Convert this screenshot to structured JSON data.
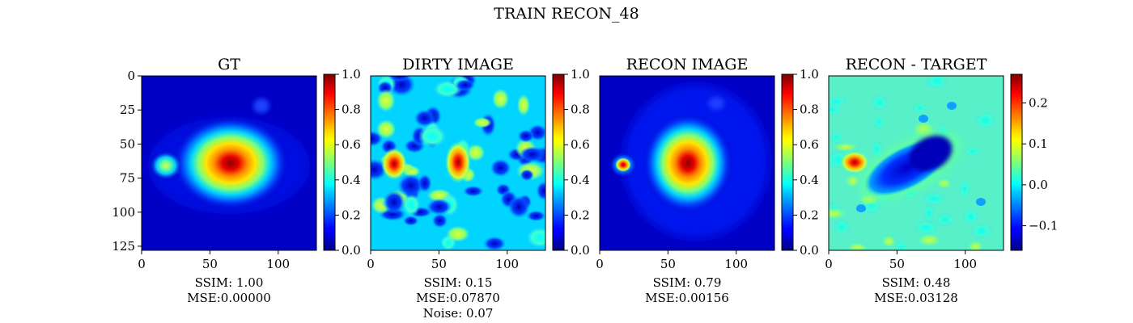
{
  "figure": {
    "title": "TRAIN RECON_48"
  },
  "colors": {
    "colormap": "jet",
    "background": "#ffffff"
  },
  "chart_data": [
    {
      "type": "heatmap",
      "title": "GT",
      "x_ticks": [
        0,
        50,
        100
      ],
      "y_ticks": [
        0,
        25,
        50,
        75,
        100,
        125
      ],
      "xlim": [
        0,
        128
      ],
      "ylim": [
        128,
        0
      ],
      "colorbar": {
        "min": 0.0,
        "max": 1.0,
        "ticks": [
          "0.0",
          "0.2",
          "0.4",
          "0.6",
          "0.8",
          "1.0"
        ]
      },
      "captions": [
        "SSIM: 1.00",
        "MSE:0.00000"
      ]
    },
    {
      "type": "heatmap",
      "title": "DIRTY IMAGE",
      "x_ticks": [
        0,
        50,
        100
      ],
      "xlim": [
        0,
        128
      ],
      "ylim": [
        128,
        0
      ],
      "colorbar": {
        "min": 0.0,
        "max": 1.0,
        "ticks": [
          "0.0",
          "0.2",
          "0.4",
          "0.6",
          "0.8",
          "1.0"
        ]
      },
      "captions": [
        "SSIM: 0.15",
        "MSE:0.07870",
        "Noise: 0.07"
      ]
    },
    {
      "type": "heatmap",
      "title": "RECON IMAGE",
      "x_ticks": [
        0,
        50,
        100
      ],
      "xlim": [
        0,
        128
      ],
      "ylim": [
        128,
        0
      ],
      "colorbar": {
        "min": 0.0,
        "max": 1.0,
        "ticks": [
          "0.0",
          "0.2",
          "0.4",
          "0.6",
          "0.8",
          "1.0"
        ]
      },
      "captions": [
        "SSIM: 0.79",
        "MSE:0.00156"
      ]
    },
    {
      "type": "heatmap",
      "title": "RECON - TARGET",
      "x_ticks": [
        0,
        50,
        100
      ],
      "xlim": [
        0,
        128
      ],
      "ylim": [
        128,
        0
      ],
      "colorbar": {
        "min": -0.16,
        "max": 0.27,
        "ticks": [
          "−0.1",
          "0.0",
          "0.1",
          "0.2"
        ],
        "tick_values": [
          -0.1,
          0.0,
          0.1,
          0.2
        ]
      },
      "captions": [
        "SSIM: 0.48",
        "MSE:0.03128"
      ]
    }
  ]
}
